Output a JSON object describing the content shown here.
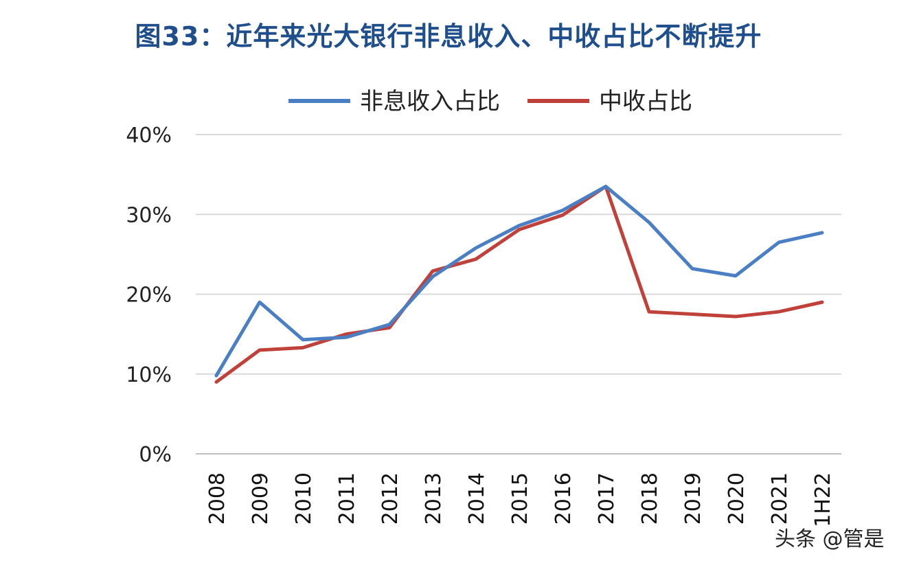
{
  "chart_data": {
    "type": "line",
    "title": "图33：近年来光大银行非息收入、中收占比不断提升",
    "xlabel": "",
    "ylabel": "",
    "categories": [
      "2008",
      "2009",
      "2010",
      "2011",
      "2012",
      "2013",
      "2014",
      "2015",
      "2016",
      "2017",
      "2018",
      "2019",
      "2020",
      "2021",
      "1H22"
    ],
    "series": [
      {
        "name": "非息收入占比",
        "color": "#4a7fc4",
        "values": [
          9.8,
          19.0,
          14.3,
          14.6,
          16.2,
          22.2,
          25.8,
          28.6,
          30.5,
          33.5,
          29.0,
          23.2,
          22.3,
          26.5,
          27.7
        ]
      },
      {
        "name": "中收占比",
        "color": "#c0413a",
        "values": [
          9.0,
          13.0,
          13.3,
          15.0,
          15.8,
          22.9,
          24.4,
          28.1,
          29.9,
          33.5,
          17.8,
          17.5,
          17.2,
          17.8,
          19.0
        ]
      }
    ],
    "ylim": [
      0,
      40
    ],
    "yticks": [
      "0%",
      "10%",
      "20%",
      "30%",
      "40%"
    ],
    "grid": true,
    "legend": "top"
  },
  "watermark": "头条 @管是"
}
